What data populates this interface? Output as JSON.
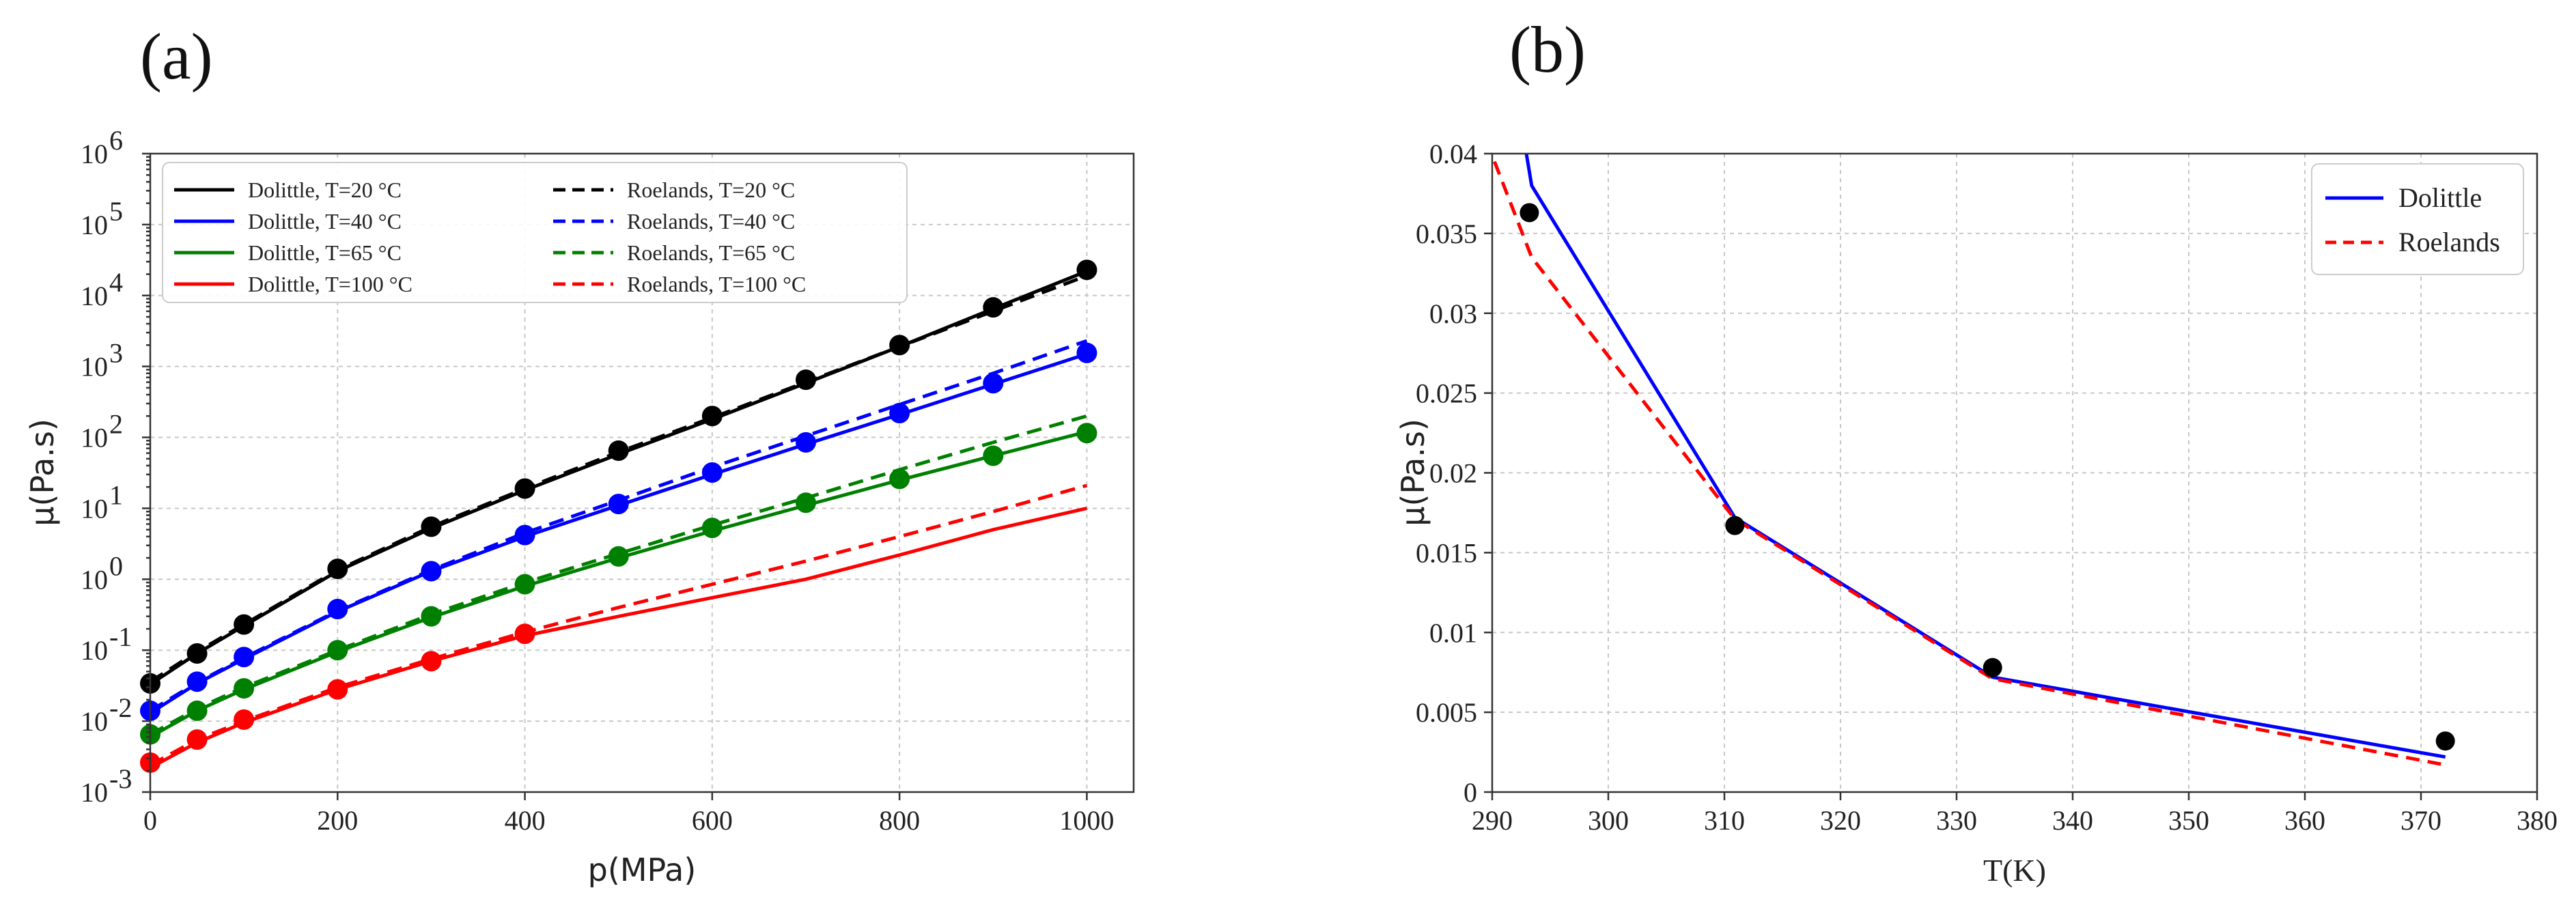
{
  "panels": {
    "a": {
      "letter": "(a)"
    },
    "b": {
      "letter": "(b)"
    }
  },
  "chart_data": [
    {
      "id": "a",
      "type": "line",
      "title": "",
      "xlabel": "p(MPa)",
      "ylabel": "μ(Pa.s)",
      "xlim": [
        0,
        1050
      ],
      "ylim_log10": [
        -3,
        6
      ],
      "yscale": "log",
      "xticks": [
        0,
        200,
        400,
        600,
        800,
        1000
      ],
      "xtick_labels": [
        "0",
        "200",
        "400",
        "600",
        "800",
        "1000"
      ],
      "ytick_exponents": [
        -3,
        -2,
        -1,
        0,
        1,
        2,
        3,
        4,
        5,
        6
      ],
      "ytick_labels": [
        "10",
        "10",
        "10",
        "10",
        "10",
        "10",
        "10",
        "10",
        "10",
        "10"
      ],
      "ytick_sups": [
        "-3",
        "-2",
        "-1",
        "0",
        "1",
        "2",
        "3",
        "4",
        "5",
        "6"
      ],
      "grid": true,
      "legend_position": "top-left",
      "series": [
        {
          "name": "Dolittle, T=20 °C",
          "color": "#000000",
          "dash": "solid",
          "x": [
            0,
            50,
            100,
            200,
            300,
            400,
            500,
            600,
            700,
            800,
            900,
            1000
          ],
          "y": [
            0.033,
            0.09,
            0.22,
            1.3,
            5.2,
            18,
            58,
            180,
            580,
            1900,
            6500,
            22000
          ]
        },
        {
          "name": "Dolittle, T=40 °C",
          "color": "#0000ff",
          "dash": "solid",
          "x": [
            0,
            50,
            100,
            200,
            300,
            400,
            500,
            600,
            700,
            800,
            900,
            1000
          ],
          "y": [
            0.013,
            0.034,
            0.075,
            0.35,
            1.3,
            4,
            11,
            30,
            80,
            210,
            560,
            1500
          ]
        },
        {
          "name": "Dolittle, T=65 °C",
          "color": "#008000",
          "dash": "solid",
          "x": [
            0,
            50,
            100,
            200,
            300,
            400,
            500,
            600,
            700,
            800,
            900,
            1000
          ],
          "y": [
            0.006,
            0.014,
            0.028,
            0.095,
            0.29,
            0.8,
            2.0,
            4.8,
            11,
            25,
            55,
            120
          ]
        },
        {
          "name": "Dolittle, T=100 °C",
          "color": "#ff0000",
          "dash": "solid",
          "x": [
            0,
            50,
            100,
            200,
            300,
            400,
            500,
            600,
            700,
            800,
            900,
            1000
          ],
          "y": [
            0.0022,
            0.005,
            0.0095,
            0.028,
            0.07,
            0.16,
            0.3,
            0.55,
            1.0,
            2.2,
            5,
            10
          ]
        },
        {
          "name": "Roelands, T=20 °C",
          "color": "#000000",
          "dash": "dashed",
          "x": [
            0,
            50,
            100,
            200,
            300,
            400,
            500,
            600,
            700,
            800,
            900,
            1000
          ],
          "y": [
            0.036,
            0.095,
            0.23,
            1.35,
            5.5,
            19,
            62,
            190,
            600,
            1900,
            6000,
            19000
          ]
        },
        {
          "name": "Roelands, T=40 °C",
          "color": "#0000ff",
          "dash": "dashed",
          "x": [
            0,
            50,
            100,
            200,
            300,
            400,
            500,
            600,
            700,
            800,
            900,
            1000
          ],
          "y": [
            0.014,
            0.035,
            0.078,
            0.36,
            1.35,
            4.5,
            13,
            38,
            105,
            290,
            800,
            2300
          ]
        },
        {
          "name": "Roelands, T=65 °C",
          "color": "#008000",
          "dash": "dashed",
          "x": [
            0,
            50,
            100,
            200,
            300,
            400,
            500,
            600,
            700,
            800,
            900,
            1000
          ],
          "y": [
            0.0065,
            0.015,
            0.03,
            0.1,
            0.32,
            0.9,
            2.3,
            5.8,
            14,
            35,
            85,
            200
          ]
        },
        {
          "name": "Roelands, T=100 °C",
          "color": "#ff0000",
          "dash": "dashed",
          "x": [
            0,
            50,
            100,
            200,
            300,
            400,
            500,
            600,
            700,
            800,
            900,
            1000
          ],
          "y": [
            0.0024,
            0.0055,
            0.01,
            0.03,
            0.075,
            0.18,
            0.4,
            0.85,
            1.8,
            4,
            9,
            21
          ]
        }
      ],
      "points": [
        {
          "color": "#000000",
          "x": [
            0,
            50,
            100,
            200,
            300,
            400,
            500,
            600,
            700,
            800,
            900,
            1000
          ],
          "y": [
            0.034,
            0.09,
            0.23,
            1.4,
            5.5,
            19,
            65,
            200,
            650,
            2000,
            6800,
            23000
          ]
        },
        {
          "color": "#0000ff",
          "x": [
            0,
            50,
            100,
            200,
            300,
            400,
            500,
            600,
            700,
            800,
            900,
            1000
          ],
          "y": [
            0.014,
            0.036,
            0.08,
            0.38,
            1.3,
            4.2,
            11.5,
            32,
            85,
            220,
            580,
            1550
          ]
        },
        {
          "color": "#008000",
          "x": [
            0,
            50,
            100,
            200,
            300,
            400,
            500,
            600,
            700,
            800,
            900,
            1000
          ],
          "y": [
            0.0065,
            0.014,
            0.029,
            0.1,
            0.3,
            0.85,
            2.1,
            5.3,
            12,
            26,
            55,
            115
          ]
        },
        {
          "color": "#ff0000",
          "x": [
            0,
            50,
            100,
            200,
            300,
            400
          ],
          "y": [
            0.0026,
            0.0055,
            0.0105,
            0.028,
            0.07,
            0.17
          ]
        }
      ]
    },
    {
      "id": "b",
      "type": "line",
      "title": "",
      "xlabel": "T(K)",
      "ylabel": "μ(Pa.s)",
      "xlim": [
        290,
        380
      ],
      "ylim": [
        0,
        0.04
      ],
      "xticks": [
        290,
        300,
        310,
        320,
        330,
        340,
        350,
        360,
        370,
        380
      ],
      "xtick_labels": [
        "290",
        "300",
        "310",
        "320",
        "330",
        "340",
        "350",
        "360",
        "370",
        "380"
      ],
      "yticks": [
        0,
        0.005,
        0.01,
        0.015,
        0.02,
        0.025,
        0.03,
        0.035,
        0.04
      ],
      "ytick_labels": [
        "0",
        "0.005",
        "0.01",
        "0.015",
        "0.02",
        "0.025",
        "0.03",
        "0.035",
        "0.04"
      ],
      "grid": true,
      "legend_position": "top-right",
      "series": [
        {
          "name": "Dolittle",
          "color": "#0000ff",
          "dash": "solid",
          "x": [
            292.6,
            293.4,
            310.9,
            333.1,
            372.1
          ],
          "y": [
            0.0415,
            0.038,
            0.0172,
            0.0072,
            0.0022
          ]
        },
        {
          "name": "Roelands",
          "color": "#ff0000",
          "dash": "dashed",
          "x": [
            290.2,
            293.4,
            310.9,
            333.1,
            372.1
          ],
          "y": [
            0.0395,
            0.0335,
            0.0171,
            0.0071,
            0.0017
          ]
        }
      ],
      "points": [
        {
          "color": "#000000",
          "x": [
            293.2,
            310.9,
            333.1,
            372.1
          ],
          "y": [
            0.0363,
            0.0167,
            0.0078,
            0.0032
          ]
        }
      ]
    }
  ]
}
